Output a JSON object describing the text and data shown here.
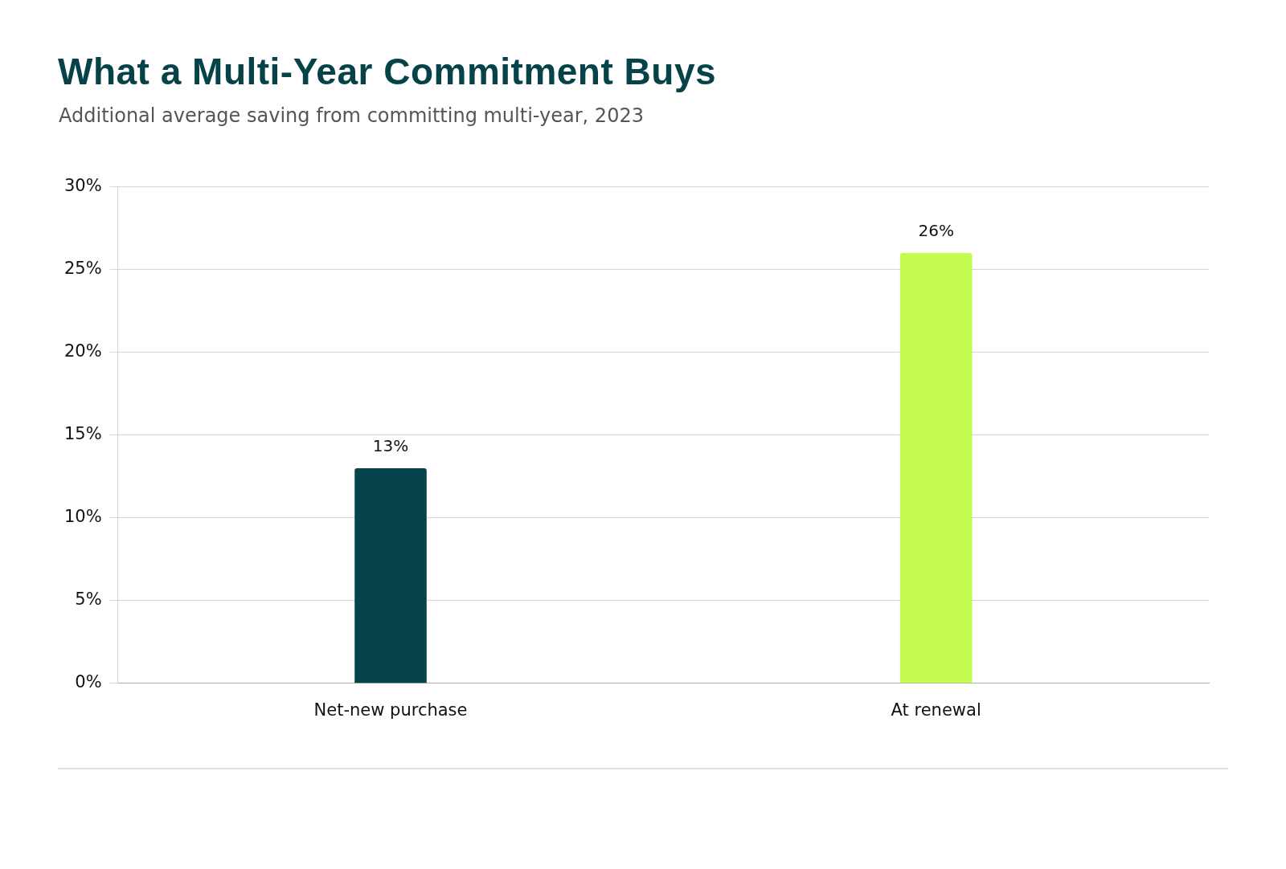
{
  "chart_data": {
    "type": "bar",
    "title": "What a Multi-Year Commitment Buys",
    "subtitle": "Additional average saving from committing multi-year, 2023",
    "categories": [
      "Net-new purchase",
      "At renewal"
    ],
    "values": [
      13,
      26
    ],
    "colors": [
      "#05444b",
      "#c3fb4e"
    ],
    "value_labels": [
      "13%",
      "26%"
    ],
    "ylim": [
      0,
      30
    ],
    "yticks": [
      {
        "value": 0,
        "label": "0%"
      },
      {
        "value": 5,
        "label": "5%"
      },
      {
        "value": 10,
        "label": "10%"
      },
      {
        "value": 15,
        "label": "15%"
      },
      {
        "value": 20,
        "label": "20%"
      },
      {
        "value": 25,
        "label": "25%"
      },
      {
        "value": 30,
        "label": "30%"
      }
    ],
    "grid": "y",
    "legend": false
  }
}
